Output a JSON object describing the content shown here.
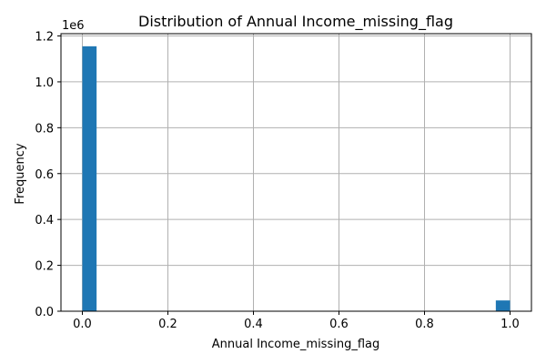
{
  "chart_data": {
    "type": "bar",
    "title": "Distribution of Annual Income_missing_flag",
    "xlabel": "Annual Income_missing_flag",
    "ylabel": "Frequency",
    "y_offset_label": "1e6",
    "xlim": [
      -0.05,
      1.05
    ],
    "ylim": [
      0,
      1.21
    ],
    "xticks": [
      0.0,
      0.2,
      0.4,
      0.6,
      0.8,
      1.0
    ],
    "xtick_labels": [
      "0.0",
      "0.2",
      "0.4",
      "0.6",
      "0.8",
      "1.0"
    ],
    "yticks": [
      0.0,
      0.2,
      0.4,
      0.6,
      0.8,
      1.0,
      1.2
    ],
    "ytick_labels": [
      "0.0",
      "0.2",
      "0.4",
      "0.6",
      "0.8",
      "1.0",
      "1.2"
    ],
    "grid": true,
    "bars": [
      {
        "x_start": 0.0,
        "x_end": 0.0333,
        "value": 1.155
      },
      {
        "x_start": 0.9667,
        "x_end": 1.0,
        "value": 0.047
      }
    ],
    "bar_color": "#1f77b4"
  }
}
